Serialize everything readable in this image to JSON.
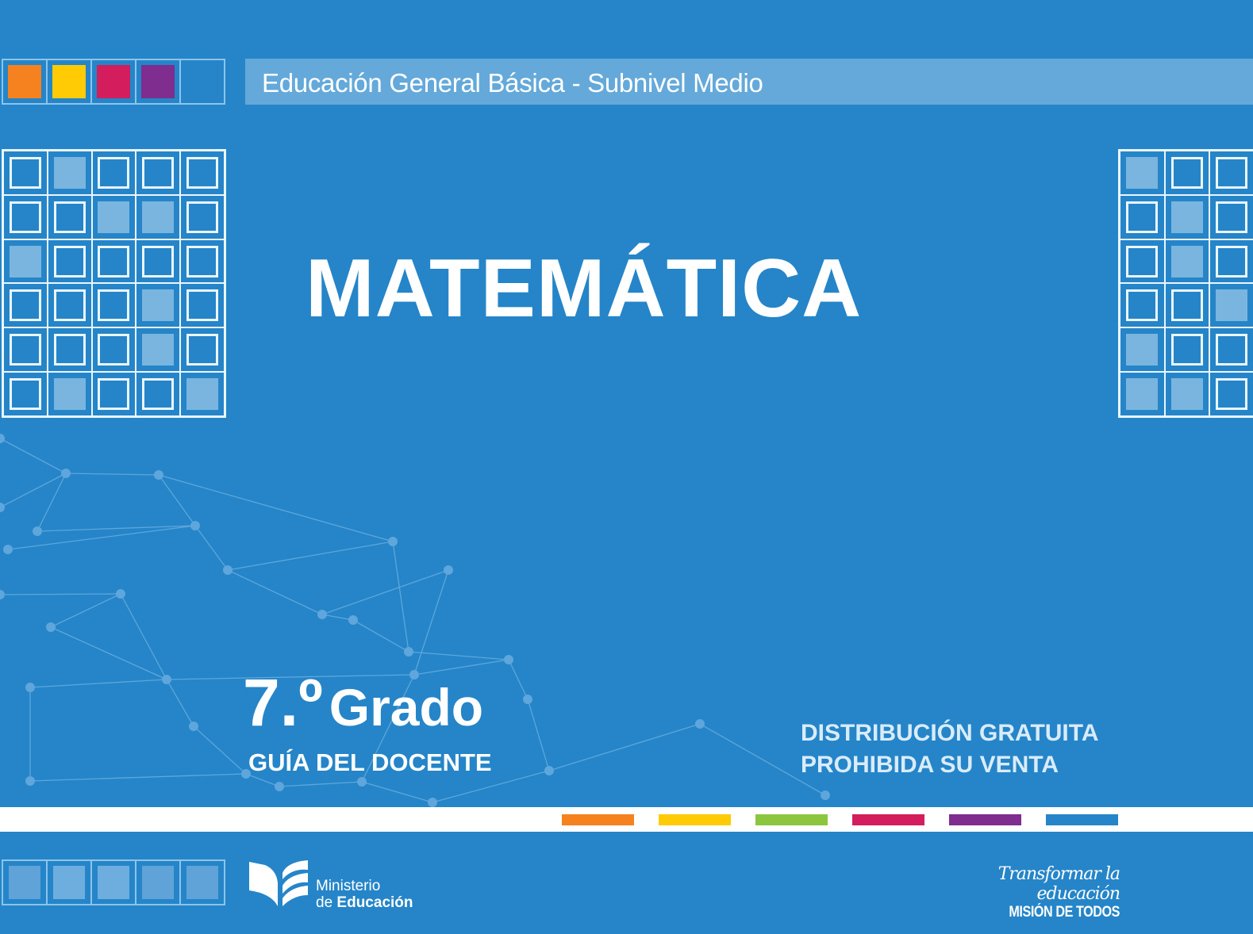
{
  "header": {
    "banner_text": "Educación General Básica - Subnivel Medio",
    "swatch_colors": [
      "#f5821f",
      "#ffcb05",
      "#d31d5c",
      "#7f2d8e"
    ]
  },
  "cover": {
    "subject": "MATEMÁTICA",
    "grade_number": "7.º",
    "grade_word": "Grado",
    "guide_label": "GUÍA DEL DOCENTE",
    "distribution_line1": "DISTRIBUCIÓN GRATUITA",
    "distribution_line2": "PROHIBIDA SU VENTA"
  },
  "footer": {
    "color_bars": [
      "#f5821f",
      "#ffcb05",
      "#8cc63f",
      "#d31d5c",
      "#7f2d8e",
      "#2585c8"
    ],
    "ministry_line1": "Ministerio",
    "ministry_line2_prefix": "de",
    "ministry_line2_bold": "Educación",
    "slogan_line1": "Transformar la educación",
    "slogan_line2": "MISIÓN DE TODOS"
  },
  "colors": {
    "background": "#2585c8",
    "banner": "#64a9da",
    "grid_fill": "#7ab5df"
  }
}
